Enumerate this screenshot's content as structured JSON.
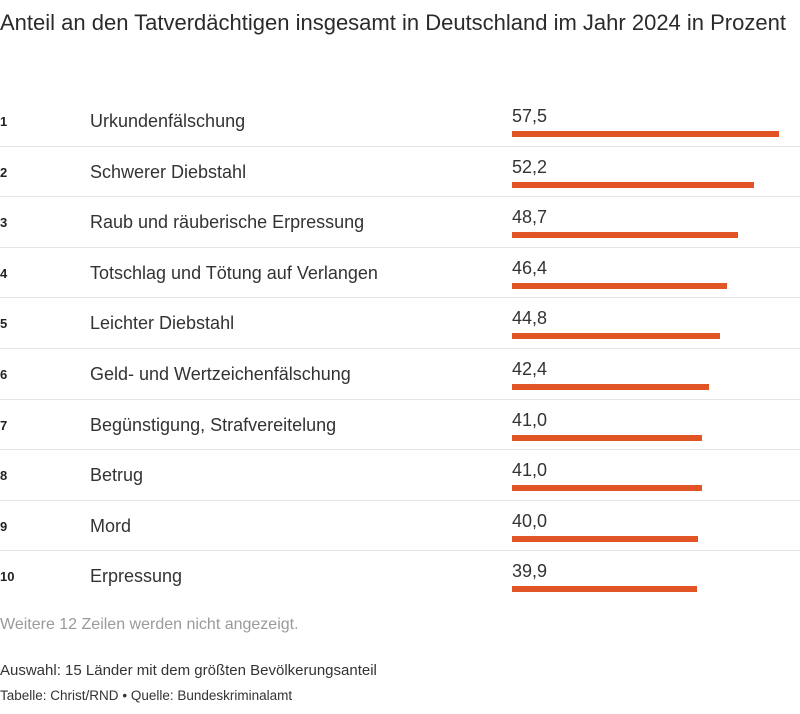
{
  "title": "Anteil an den Tatverdächtigen insgesamt in Deutschland im Jahr 2024 in Prozent",
  "note": "Weitere 12 Zeilen werden nicht angezeigt.",
  "footer": {
    "selection": "Auswahl: 15 Länder mit dem größten Bevölkerungsanteil",
    "table_credit": "Tabelle: Christ/RND",
    "separator": "•",
    "source": "Quelle: Bundeskriminalamt"
  },
  "colors": {
    "bar": "#e05425"
  },
  "chart_data": {
    "type": "bar",
    "title": "Anteil an den Tatverdächtigen insgesamt in Deutschland im Jahr 2024 in Prozent",
    "ranks": [
      "1",
      "2",
      "3",
      "4",
      "5",
      "6",
      "7",
      "8",
      "9",
      "10"
    ],
    "categories": [
      "Urkundenfälschung",
      "Schwerer Diebstahl",
      "Raub und räuberische Erpressung",
      "Totschlag und Tötung auf Verlangen",
      "Leichter Diebstahl",
      "Geld- und Wertzeichenfälschung",
      "Begünstigung, Strafvereitelung",
      "Betrug",
      "Mord",
      "Erpressung"
    ],
    "values": [
      57.5,
      52.2,
      48.7,
      46.4,
      44.8,
      42.4,
      41.0,
      41.0,
      40.0,
      39.9
    ],
    "value_labels": [
      "57,5",
      "52,2",
      "48,7",
      "46,4",
      "44,8",
      "42,4",
      "41,0",
      "41,0",
      "40,0",
      "39,9"
    ],
    "xlim": [
      0,
      57.5
    ]
  }
}
